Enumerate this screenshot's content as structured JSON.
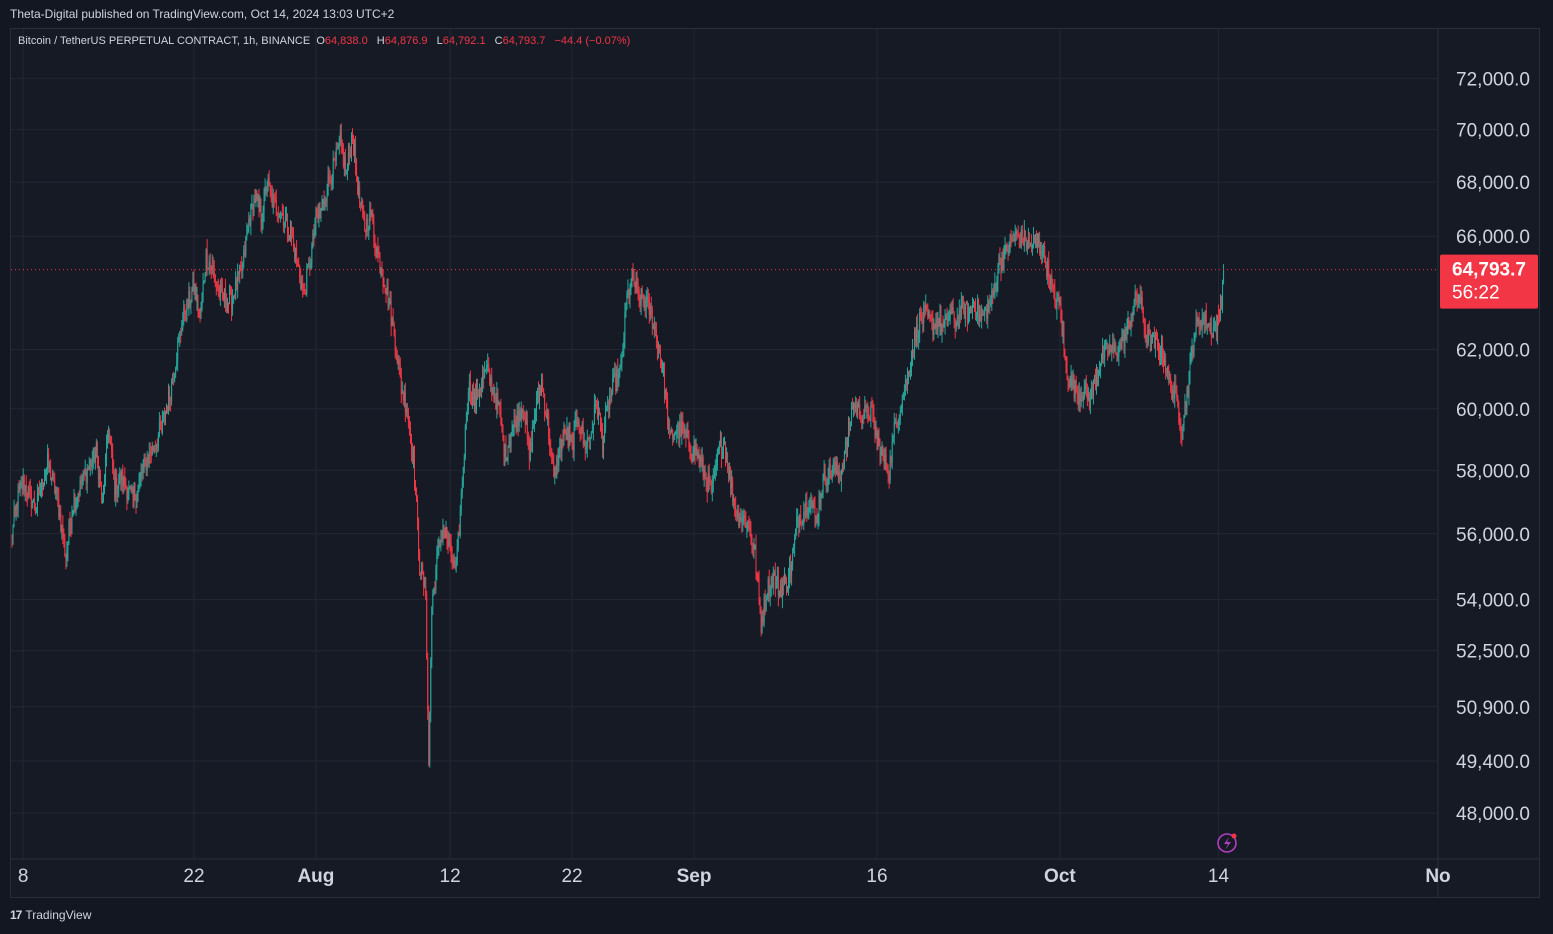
{
  "publisher_line": "Theta-Digital published on TradingView.com, Oct 14, 2024 13:03 UTC+2",
  "legend": {
    "symbol": "Bitcoin / TetherUS PERPETUAL CONTRACT, 1h, BINANCE",
    "o_label": "O",
    "o_value": "64,838.0",
    "h_label": "H",
    "h_value": "64,876.9",
    "l_label": "L",
    "l_value": "64,792.1",
    "c_label": "C",
    "c_value": "64,793.7",
    "change": "−44.4 (−0.07%)"
  },
  "footer": {
    "logo": "17",
    "brand": "TradingView"
  },
  "colors": {
    "up": "#26a69a",
    "down": "#f23645",
    "background": "#161a25",
    "grid": "#232734",
    "text": "#d1d4dc",
    "price_tag": "#f23645"
  },
  "chart_data": {
    "type": "candlestick",
    "symbol": "BTCUSDT.P",
    "interval": "1h",
    "scale": "logarithmic",
    "y_ticks": [
      "72,000.0",
      "70,000.0",
      "68,000.0",
      "66,000.0",
      "62,000.0",
      "60,000.0",
      "58,000.0",
      "56,000.0",
      "54,000.0",
      "52,500.0",
      "50,900.0",
      "49,400.0",
      "48,000.0"
    ],
    "y_tick_values": [
      72000,
      70000,
      68000,
      66000,
      62000,
      60000,
      58000,
      56000,
      54000,
      52500,
      50900,
      49400,
      48000
    ],
    "ylim": [
      46900,
      74000
    ],
    "x_range": [
      "2024-07-07",
      "2024-11-01"
    ],
    "x_ticks": [
      {
        "label": "8",
        "date": "2024-07-08"
      },
      {
        "label": "22",
        "date": "2024-07-22"
      },
      {
        "label": "Aug",
        "date": "2024-08-01"
      },
      {
        "label": "12",
        "date": "2024-08-12"
      },
      {
        "label": "22",
        "date": "2024-08-22"
      },
      {
        "label": "Sep",
        "date": "2024-09-01"
      },
      {
        "label": "16",
        "date": "2024-09-16"
      },
      {
        "label": "Oct",
        "date": "2024-10-01"
      },
      {
        "label": "14",
        "date": "2024-10-14"
      },
      {
        "label": "No",
        "date": "2024-11-01"
      }
    ],
    "last_price": 64793.7,
    "last_price_label": "64,793.7",
    "countdown": "56:22",
    "approx_path": [
      {
        "date": "2024-07-07T00:00",
        "price": 55800
      },
      {
        "date": "2024-07-07T12:00",
        "price": 57000
      },
      {
        "date": "2024-07-08T00:00",
        "price": 57600
      },
      {
        "date": "2024-07-09T00:00",
        "price": 56800
      },
      {
        "date": "2024-07-10T00:00",
        "price": 58200
      },
      {
        "date": "2024-07-10T18:00",
        "price": 57200
      },
      {
        "date": "2024-07-11T12:00",
        "price": 55300
      },
      {
        "date": "2024-07-12T00:00",
        "price": 56800
      },
      {
        "date": "2024-07-13T00:00",
        "price": 57800
      },
      {
        "date": "2024-07-14T00:00",
        "price": 58600
      },
      {
        "date": "2024-07-14T12:00",
        "price": 57000
      },
      {
        "date": "2024-07-15T00:00",
        "price": 59400
      },
      {
        "date": "2024-07-15T12:00",
        "price": 57400
      },
      {
        "date": "2024-07-16T00:00",
        "price": 57800
      },
      {
        "date": "2024-07-17T00:00",
        "price": 57000
      },
      {
        "date": "2024-07-18T00:00",
        "price": 58200
      },
      {
        "date": "2024-07-19T00:00",
        "price": 59000
      },
      {
        "date": "2024-07-20T00:00",
        "price": 60400
      },
      {
        "date": "2024-07-21T00:00",
        "price": 62900
      },
      {
        "date": "2024-07-22T00:00",
        "price": 64200
      },
      {
        "date": "2024-07-22T12:00",
        "price": 63100
      },
      {
        "date": "2024-07-23T00:00",
        "price": 65300
      },
      {
        "date": "2024-07-23T12:00",
        "price": 64800
      },
      {
        "date": "2024-07-24T00:00",
        "price": 64000
      },
      {
        "date": "2024-07-25T00:00",
        "price": 63600
      },
      {
        "date": "2024-07-26T00:00",
        "price": 64900
      },
      {
        "date": "2024-07-26T12:00",
        "price": 66600
      },
      {
        "date": "2024-07-27T00:00",
        "price": 67400
      },
      {
        "date": "2024-07-27T12:00",
        "price": 66700
      },
      {
        "date": "2024-07-28T00:00",
        "price": 68000
      },
      {
        "date": "2024-07-28T12:00",
        "price": 67200
      },
      {
        "date": "2024-07-29T00:00",
        "price": 67000
      },
      {
        "date": "2024-07-29T12:00",
        "price": 66600
      },
      {
        "date": "2024-07-30T00:00",
        "price": 66000
      },
      {
        "date": "2024-07-30T12:00",
        "price": 65000
      },
      {
        "date": "2024-07-31T00:00",
        "price": 63900
      },
      {
        "date": "2024-07-31T12:00",
        "price": 65000
      },
      {
        "date": "2024-08-01T00:00",
        "price": 66600
      },
      {
        "date": "2024-08-01T12:00",
        "price": 67000
      },
      {
        "date": "2024-08-02T00:00",
        "price": 68000
      },
      {
        "date": "2024-08-02T12:00",
        "price": 68600
      },
      {
        "date": "2024-08-03T00:00",
        "price": 69500
      },
      {
        "date": "2024-08-03T12:00",
        "price": 68300
      },
      {
        "date": "2024-08-04T00:00",
        "price": 69800
      },
      {
        "date": "2024-08-04T12:00",
        "price": 67500
      },
      {
        "date": "2024-08-05T00:00",
        "price": 66300
      },
      {
        "date": "2024-08-05T12:00",
        "price": 66800
      },
      {
        "date": "2024-08-06T00:00",
        "price": 65500
      },
      {
        "date": "2024-08-06T12:00",
        "price": 64600
      },
      {
        "date": "2024-08-07T00:00",
        "price": 63600
      },
      {
        "date": "2024-08-07T12:00",
        "price": 62300
      },
      {
        "date": "2024-08-08T00:00",
        "price": 60700
      },
      {
        "date": "2024-08-08T12:00",
        "price": 60000
      },
      {
        "date": "2024-08-09T00:00",
        "price": 58300
      },
      {
        "date": "2024-08-09T12:00",
        "price": 55100
      },
      {
        "date": "2024-08-10T00:00",
        "price": 54200
      },
      {
        "date": "2024-08-10T06:00",
        "price": 49200
      },
      {
        "date": "2024-08-10T12:00",
        "price": 53800
      },
      {
        "date": "2024-08-11T00:00",
        "price": 55400
      },
      {
        "date": "2024-08-11T12:00",
        "price": 56300
      },
      {
        "date": "2024-08-12T00:00",
        "price": 55400
      },
      {
        "date": "2024-08-12T12:00",
        "price": 54800
      },
      {
        "date": "2024-08-13T00:00",
        "price": 57600
      },
      {
        "date": "2024-08-13T12:00",
        "price": 60800
      },
      {
        "date": "2024-08-14T00:00",
        "price": 60200
      },
      {
        "date": "2024-08-14T12:00",
        "price": 60800
      },
      {
        "date": "2024-08-15T00:00",
        "price": 61300
      },
      {
        "date": "2024-08-16T00:00",
        "price": 60000
      },
      {
        "date": "2024-08-16T12:00",
        "price": 58500
      },
      {
        "date": "2024-08-17T00:00",
        "price": 59200
      },
      {
        "date": "2024-08-18T00:00",
        "price": 60200
      },
      {
        "date": "2024-08-18T12:00",
        "price": 58400
      },
      {
        "date": "2024-08-19T00:00",
        "price": 60000
      },
      {
        "date": "2024-08-19T12:00",
        "price": 60900
      },
      {
        "date": "2024-08-20T00:00",
        "price": 59600
      },
      {
        "date": "2024-08-20T12:00",
        "price": 57700
      },
      {
        "date": "2024-08-21T00:00",
        "price": 58800
      },
      {
        "date": "2024-08-21T12:00",
        "price": 59200
      },
      {
        "date": "2024-08-22T00:00",
        "price": 58800
      },
      {
        "date": "2024-08-22T12:00",
        "price": 59800
      },
      {
        "date": "2024-08-23T00:00",
        "price": 58800
      },
      {
        "date": "2024-08-23T12:00",
        "price": 59100
      },
      {
        "date": "2024-08-24T00:00",
        "price": 60200
      },
      {
        "date": "2024-08-24T12:00",
        "price": 59000
      },
      {
        "date": "2024-08-25T00:00",
        "price": 60200
      },
      {
        "date": "2024-08-25T12:00",
        "price": 60900
      },
      {
        "date": "2024-08-26T00:00",
        "price": 61200
      },
      {
        "date": "2024-08-26T12:00",
        "price": 63800
      },
      {
        "date": "2024-08-27T00:00",
        "price": 64400
      },
      {
        "date": "2024-08-27T12:00",
        "price": 63800
      },
      {
        "date": "2024-08-28T00:00",
        "price": 63700
      },
      {
        "date": "2024-08-28T12:00",
        "price": 63200
      },
      {
        "date": "2024-08-29T00:00",
        "price": 62300
      },
      {
        "date": "2024-08-29T12:00",
        "price": 61200
      },
      {
        "date": "2024-08-30T00:00",
        "price": 59000
      },
      {
        "date": "2024-08-30T12:00",
        "price": 59300
      },
      {
        "date": "2024-08-31T00:00",
        "price": 59300
      },
      {
        "date": "2024-08-31T12:00",
        "price": 58900
      },
      {
        "date": "2024-09-01T00:00",
        "price": 58700
      },
      {
        "date": "2024-09-01T12:00",
        "price": 58300
      },
      {
        "date": "2024-09-02T00:00",
        "price": 57700
      },
      {
        "date": "2024-09-02T12:00",
        "price": 57300
      },
      {
        "date": "2024-09-03T00:00",
        "price": 58600
      },
      {
        "date": "2024-09-03T12:00",
        "price": 58900
      },
      {
        "date": "2024-09-04T00:00",
        "price": 57600
      },
      {
        "date": "2024-09-04T12:00",
        "price": 56600
      },
      {
        "date": "2024-09-05T00:00",
        "price": 56500
      },
      {
        "date": "2024-09-05T12:00",
        "price": 56300
      },
      {
        "date": "2024-09-06T00:00",
        "price": 55400
      },
      {
        "date": "2024-09-06T12:00",
        "price": 53300
      },
      {
        "date": "2024-09-07T00:00",
        "price": 54300
      },
      {
        "date": "2024-09-07T12:00",
        "price": 54700
      },
      {
        "date": "2024-09-08T00:00",
        "price": 54300
      },
      {
        "date": "2024-09-08T12:00",
        "price": 54500
      },
      {
        "date": "2024-09-09T00:00",
        "price": 55000
      },
      {
        "date": "2024-09-09T12:00",
        "price": 56500
      },
      {
        "date": "2024-09-10T00:00",
        "price": 56700
      },
      {
        "date": "2024-09-10T12:00",
        "price": 57100
      },
      {
        "date": "2024-09-11T00:00",
        "price": 56400
      },
      {
        "date": "2024-09-11T12:00",
        "price": 57600
      },
      {
        "date": "2024-09-12T00:00",
        "price": 57900
      },
      {
        "date": "2024-09-12T12:00",
        "price": 58000
      },
      {
        "date": "2024-09-13T00:00",
        "price": 57900
      },
      {
        "date": "2024-09-13T12:00",
        "price": 58800
      },
      {
        "date": "2024-09-14T00:00",
        "price": 60200
      },
      {
        "date": "2024-09-14T12:00",
        "price": 59900
      },
      {
        "date": "2024-09-15T00:00",
        "price": 59800
      },
      {
        "date": "2024-09-15T12:00",
        "price": 59900
      },
      {
        "date": "2024-09-16T00:00",
        "price": 59000
      },
      {
        "date": "2024-09-16T12:00",
        "price": 58300
      },
      {
        "date": "2024-09-17T00:00",
        "price": 58000
      },
      {
        "date": "2024-09-17T12:00",
        "price": 59500
      },
      {
        "date": "2024-09-18T00:00",
        "price": 60300
      },
      {
        "date": "2024-09-18T12:00",
        "price": 61000
      },
      {
        "date": "2024-09-19T00:00",
        "price": 62200
      },
      {
        "date": "2024-09-19T12:00",
        "price": 63000
      },
      {
        "date": "2024-09-20T00:00",
        "price": 63200
      },
      {
        "date": "2024-09-20T12:00",
        "price": 62800
      },
      {
        "date": "2024-09-21T00:00",
        "price": 63000
      },
      {
        "date": "2024-09-21T12:00",
        "price": 62700
      },
      {
        "date": "2024-09-22T00:00",
        "price": 63200
      },
      {
        "date": "2024-09-22T12:00",
        "price": 62900
      },
      {
        "date": "2024-09-23T00:00",
        "price": 63500
      },
      {
        "date": "2024-09-23T12:00",
        "price": 63200
      },
      {
        "date": "2024-09-24T00:00",
        "price": 63700
      },
      {
        "date": "2024-09-24T12:00",
        "price": 63000
      },
      {
        "date": "2024-09-25T00:00",
        "price": 63400
      },
      {
        "date": "2024-09-25T12:00",
        "price": 63800
      },
      {
        "date": "2024-09-26T00:00",
        "price": 65000
      },
      {
        "date": "2024-09-26T12:00",
        "price": 65300
      },
      {
        "date": "2024-09-27T00:00",
        "price": 65800
      },
      {
        "date": "2024-09-27T12:00",
        "price": 66000
      },
      {
        "date": "2024-09-28T00:00",
        "price": 65900
      },
      {
        "date": "2024-09-28T12:00",
        "price": 65700
      },
      {
        "date": "2024-09-29T00:00",
        "price": 65700
      },
      {
        "date": "2024-09-29T12:00",
        "price": 65600
      },
      {
        "date": "2024-09-30T00:00",
        "price": 64800
      },
      {
        "date": "2024-09-30T12:00",
        "price": 63800
      },
      {
        "date": "2024-10-01T00:00",
        "price": 63500
      },
      {
        "date": "2024-10-01T12:00",
        "price": 61300
      },
      {
        "date": "2024-10-02T00:00",
        "price": 60800
      },
      {
        "date": "2024-10-02T12:00",
        "price": 60500
      },
      {
        "date": "2024-10-03T00:00",
        "price": 60600
      },
      {
        "date": "2024-10-03T12:00",
        "price": 60300
      },
      {
        "date": "2024-10-04T00:00",
        "price": 61200
      },
      {
        "date": "2024-10-04T12:00",
        "price": 61800
      },
      {
        "date": "2024-10-05T00:00",
        "price": 62000
      },
      {
        "date": "2024-10-05T12:00",
        "price": 61900
      },
      {
        "date": "2024-10-06T00:00",
        "price": 62200
      },
      {
        "date": "2024-10-06T12:00",
        "price": 62600
      },
      {
        "date": "2024-10-07T00:00",
        "price": 63500
      },
      {
        "date": "2024-10-07T12:00",
        "price": 63900
      },
      {
        "date": "2024-10-08T00:00",
        "price": 62600
      },
      {
        "date": "2024-10-08T12:00",
        "price": 62200
      },
      {
        "date": "2024-10-09T00:00",
        "price": 62200
      },
      {
        "date": "2024-10-09T12:00",
        "price": 61800
      },
      {
        "date": "2024-10-10T00:00",
        "price": 60800
      },
      {
        "date": "2024-10-10T12:00",
        "price": 60400
      },
      {
        "date": "2024-10-11T00:00",
        "price": 59300
      },
      {
        "date": "2024-10-11T12:00",
        "price": 60800
      },
      {
        "date": "2024-10-12T00:00",
        "price": 62500
      },
      {
        "date": "2024-10-12T12:00",
        "price": 63100
      },
      {
        "date": "2024-10-13T00:00",
        "price": 63000
      },
      {
        "date": "2024-10-13T12:00",
        "price": 62700
      },
      {
        "date": "2024-10-14T00:00",
        "price": 62900
      },
      {
        "date": "2024-10-14T06:00",
        "price": 63900
      },
      {
        "date": "2024-10-14T10:00",
        "price": 64793.7
      }
    ]
  }
}
